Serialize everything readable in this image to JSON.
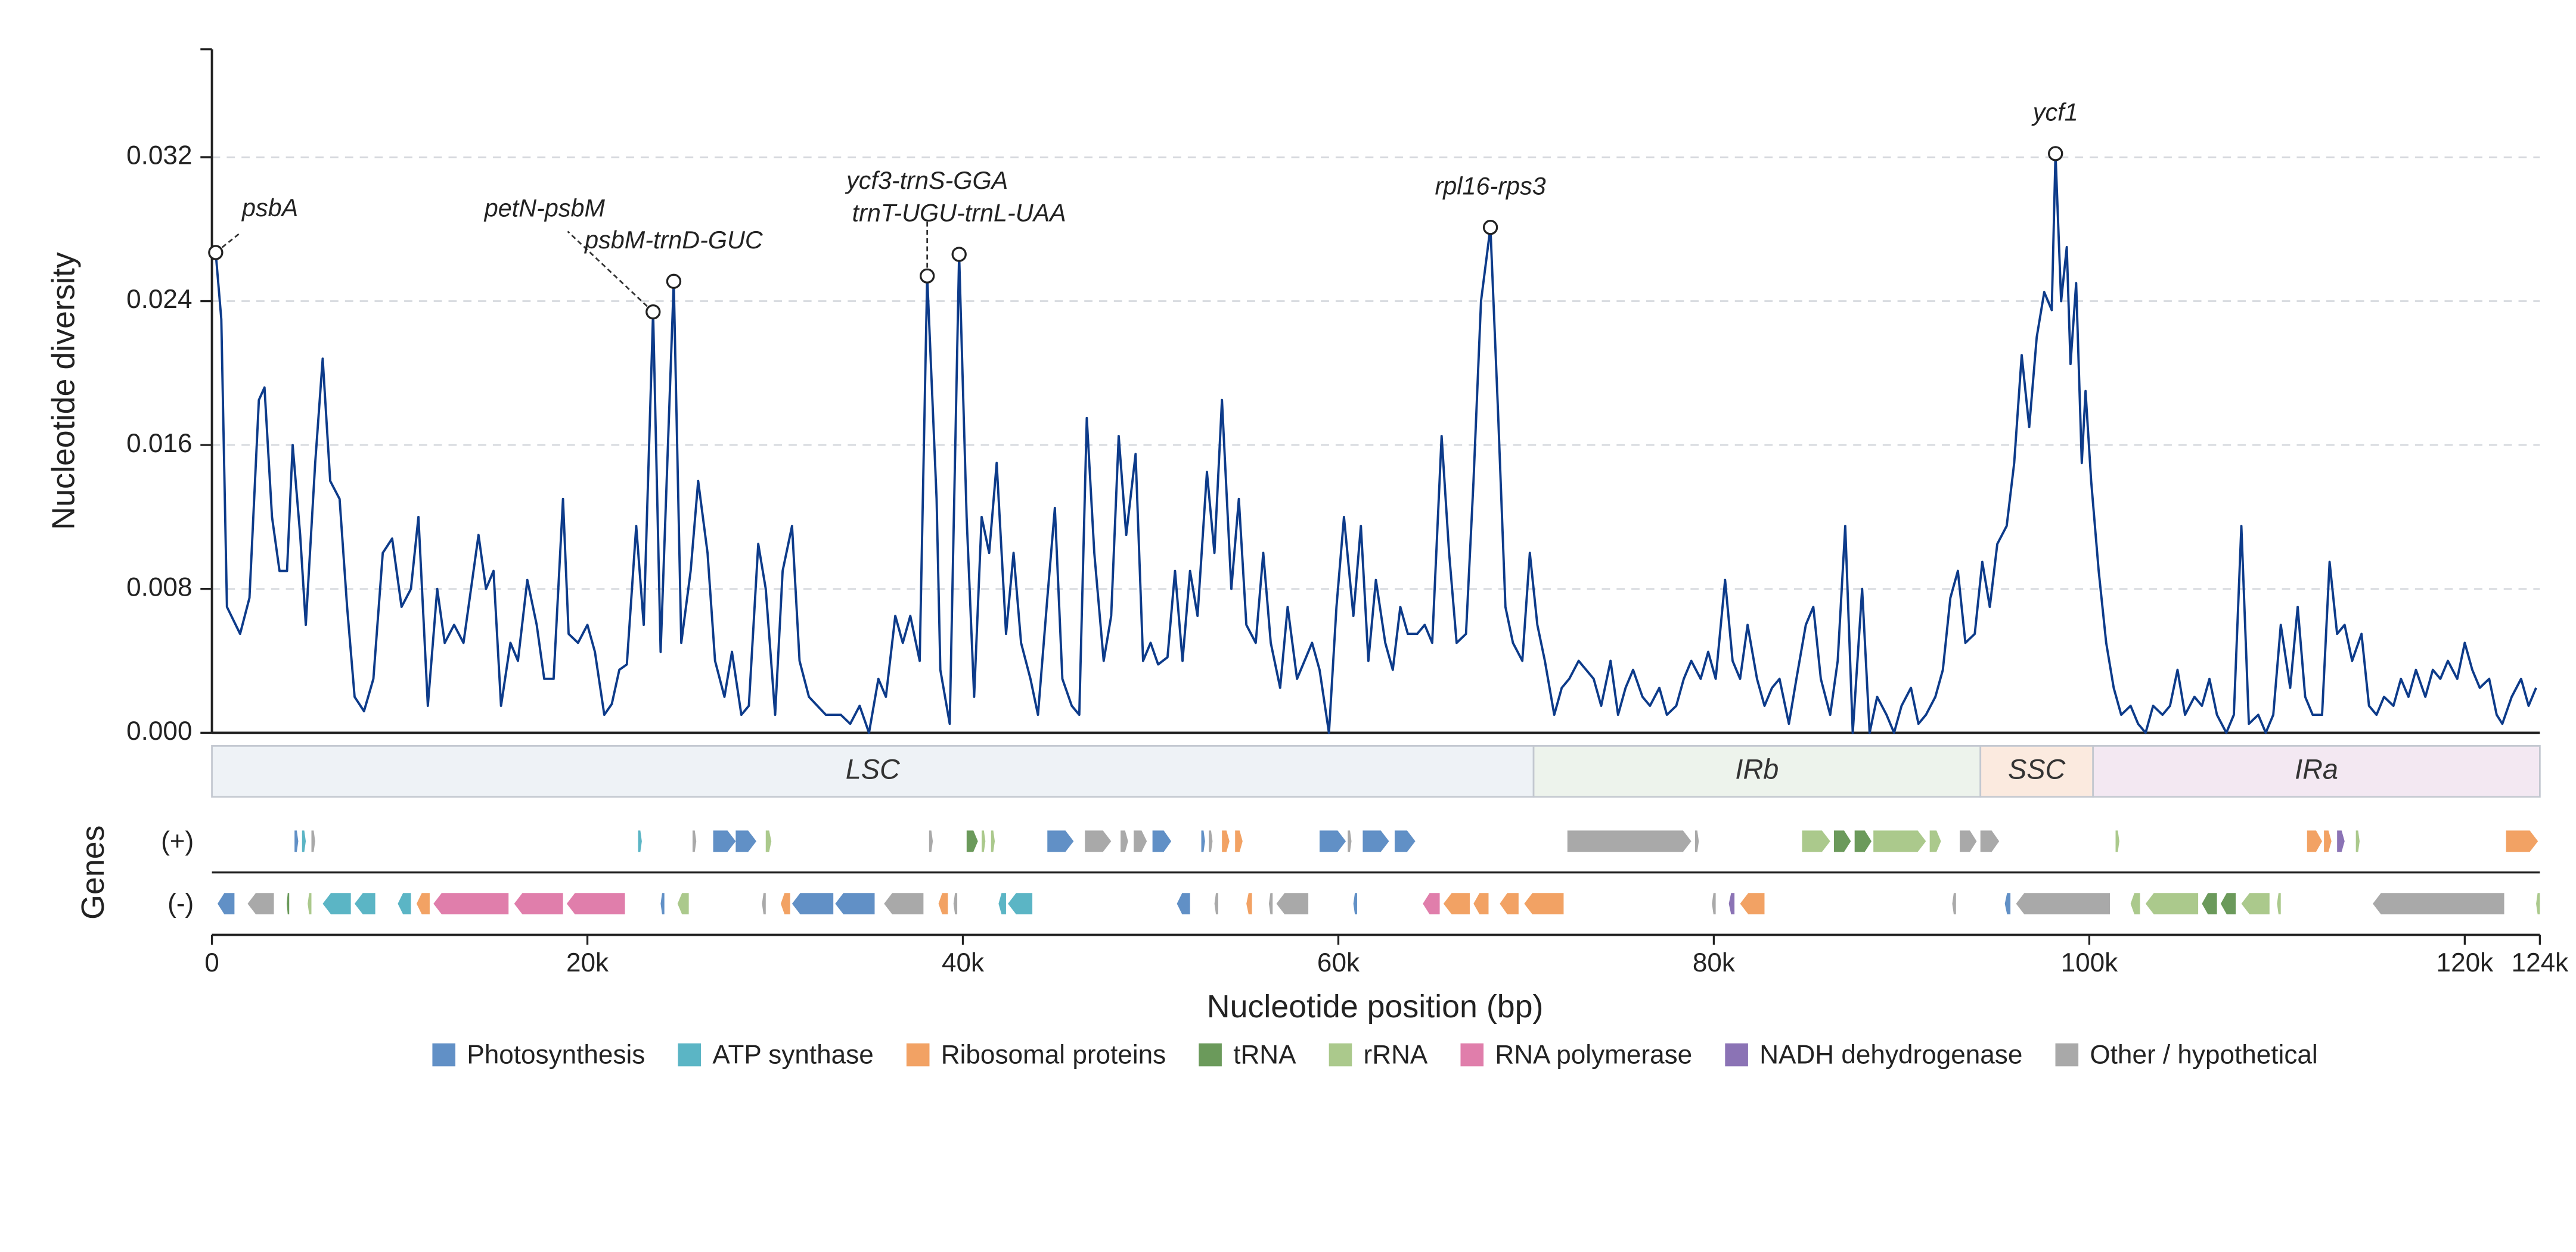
{
  "chart_data": {
    "type": "line",
    "ylabel": "Nucleotide diversity",
    "xlabel": "Nucleotide position (bp)",
    "track_title": "Genes",
    "plus_label": "(+)",
    "minus_label": "(-)",
    "color": "#0d3b8a",
    "grid": true,
    "xlim": [
      0,
      124000
    ],
    "ylim": [
      0,
      0.038
    ],
    "yticks": [
      {
        "value": 0,
        "label": "0.000"
      },
      0.008,
      0.016,
      0.024,
      0.032
    ],
    "xticks": [
      0,
      {
        "value": 20000,
        "label": "20k"
      },
      {
        "value": 40000,
        "label": "40k"
      },
      {
        "value": 60000,
        "label": "60k"
      },
      {
        "value": 80000,
        "label": "80k"
      },
      {
        "value": 100000,
        "label": "100k"
      },
      {
        "value": 120000,
        "label": "120k"
      },
      {
        "value": 124000,
        "label": "124k"
      }
    ],
    "x": [
      200,
      500,
      800,
      1500,
      2000,
      2500,
      2800,
      3200,
      3600,
      4000,
      4300,
      4700,
      5000,
      5500,
      5900,
      6300,
      6800,
      7200,
      7600,
      8100,
      8600,
      9100,
      9600,
      10100,
      10600,
      11000,
      11500,
      12000,
      12400,
      12900,
      13400,
      13800,
      14200,
      14600,
      15000,
      15400,
      15900,
      16300,
      16800,
      17300,
      17700,
      18200,
      18700,
      19000,
      19500,
      20000,
      20400,
      20900,
      21300,
      21700,
      22100,
      22600,
      23000,
      23500,
      23900,
      24600,
      25000,
      25500,
      25900,
      26400,
      26800,
      27300,
      27700,
      28200,
      28600,
      29100,
      29500,
      30000,
      30400,
      30900,
      31300,
      31800,
      32700,
      33500,
      34000,
      34500,
      35000,
      35500,
      35900,
      36400,
      36800,
      37200,
      37700,
      38100,
      38600,
      38800,
      39300,
      39800,
      40200,
      40600,
      41000,
      41400,
      41800,
      42300,
      42700,
      43100,
      43600,
      44000,
      44500,
      44900,
      45300,
      45800,
      46200,
      46600,
      47000,
      47500,
      47900,
      48300,
      48700,
      49200,
      49600,
      50000,
      50400,
      50900,
      51300,
      51700,
      52100,
      52500,
      53000,
      53400,
      53800,
      54300,
      54700,
      55100,
      55600,
      56000,
      56400,
      56900,
      57300,
      57800,
      58200,
      58600,
      59000,
      59500,
      59900,
      60300,
      60800,
      61200,
      61600,
      62000,
      62500,
      62900,
      63300,
      63700,
      64200,
      64600,
      65000,
      65500,
      65900,
      66300,
      66800,
      67200,
      67600,
      68100,
      68500,
      68900,
      69300,
      69800,
      70200,
      70600,
      71000,
      71500,
      71900,
      72300,
      72800,
      73200,
      73600,
      74000,
      74500,
      74900,
      75300,
      75700,
      76200,
      76600,
      77100,
      77500,
      78000,
      78400,
      78800,
      79300,
      79700,
      80100,
      80600,
      81000,
      81400,
      81800,
      82300,
      82700,
      83100,
      83500,
      84000,
      84400,
      84900,
      85300,
      85700,
      86200,
      86600,
      87000,
      87400,
      87900,
      88300,
      88700,
      89200,
      89600,
      90000,
      90500,
      90900,
      91300,
      91800,
      92200,
      92600,
      93000,
      93400,
      93900,
      94300,
      94700,
      95100,
      95600,
      96000,
      96400,
      96800,
      97200,
      97600,
      98000,
      98200,
      98500,
      98800,
      99000,
      99300,
      99600,
      99800,
      100100,
      100500,
      100900,
      101300,
      101700,
      102200,
      102600,
      103000,
      103400,
      103900,
      104300,
      104700,
      105100,
      105600,
      106000,
      106400,
      106800,
      107300,
      107700,
      108100,
      108500,
      109000,
      109400,
      109800,
      110200,
      110700,
      111100,
      111500,
      111900,
      112400,
      112800,
      113200,
      113600,
      114000,
      114500,
      114900,
      115300,
      115700,
      116200,
      116600,
      117000,
      117400,
      117900,
      118300,
      118700,
      119100,
      119600,
      120000,
      120400,
      120800,
      121300,
      121700,
      122000,
      122500,
      123000,
      123400,
      123800
    ],
    "values": [
      0.0267,
      0.023,
      0.007,
      0.0055,
      0.0075,
      0.0185,
      0.0192,
      0.012,
      0.009,
      0.009,
      0.016,
      0.011,
      0.006,
      0.015,
      0.0208,
      0.014,
      0.013,
      0.007,
      0.002,
      0.0012,
      0.003,
      0.01,
      0.0108,
      0.007,
      0.008,
      0.012,
      0.0015,
      0.008,
      0.005,
      0.006,
      0.005,
      0.008,
      0.011,
      0.008,
      0.009,
      0.0015,
      0.005,
      0.004,
      0.0085,
      0.006,
      0.003,
      0.003,
      0.013,
      0.0055,
      0.005,
      0.006,
      0.0045,
      0.001,
      0.0016,
      0.0035,
      0.0038,
      0.0115,
      0.006,
      0.0234,
      0.0045,
      0.0251,
      0.005,
      0.009,
      0.014,
      0.01,
      0.004,
      0.002,
      0.0045,
      0.001,
      0.0015,
      0.0105,
      0.008,
      0.001,
      0.009,
      0.0115,
      0.004,
      0.002,
      0.001,
      0.001,
      0.0005,
      0.0015,
      0,
      0.003,
      0.002,
      0.0065,
      0.005,
      0.0065,
      0.004,
      0.0254,
      0.013,
      0.0035,
      0.0005,
      0.0266,
      0.012,
      0.002,
      0.012,
      0.01,
      0.015,
      0.0055,
      0.01,
      0.005,
      0.003,
      0.001,
      0.0075,
      0.0125,
      0.003,
      0.0015,
      0.001,
      0.0175,
      0.01,
      0.004,
      0.0065,
      0.0165,
      0.011,
      0.0155,
      0.004,
      0.005,
      0.0038,
      0.0042,
      0.009,
      0.004,
      0.009,
      0.0065,
      0.0145,
      0.01,
      0.0185,
      0.008,
      0.013,
      0.006,
      0.005,
      0.01,
      0.005,
      0.0025,
      0.007,
      0.003,
      0.004,
      0.005,
      0.0035,
      0,
      0.007,
      0.012,
      0.0065,
      0.0115,
      0.004,
      0.0085,
      0.005,
      0.0035,
      0.007,
      0.0055,
      0.0055,
      0.006,
      0.005,
      0.0165,
      0.01,
      0.005,
      0.0055,
      0.014,
      0.024,
      0.0281,
      0.018,
      0.007,
      0.005,
      0.004,
      0.01,
      0.006,
      0.004,
      0.001,
      0.0025,
      0.003,
      0.004,
      0.0035,
      0.003,
      0.0015,
      0.004,
      0.001,
      0.0025,
      0.0035,
      0.002,
      0.0015,
      0.0025,
      0.001,
      0.0015,
      0.003,
      0.004,
      0.003,
      0.0045,
      0.003,
      0.0085,
      0.004,
      0.003,
      0.006,
      0.003,
      0.0015,
      0.0025,
      0.003,
      0.0005,
      0.003,
      0.006,
      0.007,
      0.003,
      0.001,
      0.004,
      0.0115,
      0,
      0.008,
      0,
      0.002,
      0.001,
      0,
      0.0015,
      0.0025,
      0.0005,
      0.001,
      0.002,
      0.0035,
      0.0075,
      0.009,
      0.005,
      0.0055,
      0.0095,
      0.007,
      0.0105,
      0.0115,
      0.015,
      0.021,
      0.017,
      0.022,
      0.0245,
      0.0235,
      0.0322,
      0.024,
      0.027,
      0.0205,
      0.025,
      0.015,
      0.019,
      0.014,
      0.009,
      0.005,
      0.0025,
      0.001,
      0.0015,
      0.0005,
      0,
      0.0015,
      0.001,
      0.0015,
      0.0035,
      0.001,
      0.002,
      0.0015,
      0.003,
      0.001,
      0,
      0.001,
      0.0115,
      0.0005,
      0.001,
      0,
      0.001,
      0.006,
      0.0025,
      0.007,
      0.002,
      0.001,
      0.001,
      0.0095,
      0.0055,
      0.006,
      0.004,
      0.0055,
      0.0015,
      0.001,
      0.002,
      0.0015,
      0.003,
      0.002,
      0.0035,
      0.002,
      0.0035,
      0.003,
      0.004,
      0.003,
      0.005,
      0.0035,
      0.0025,
      0.003,
      0.001,
      0.0005,
      0.002,
      0.003,
      0.0015,
      0.0025
    ],
    "annotations": [
      {
        "label": "psbA",
        "x": 200,
        "y": 0.0267
      },
      {
        "label": "petN-psbM",
        "x": 23500,
        "y": 0.0234
      },
      {
        "label": "psbM-trnD-GUC",
        "x": 24600,
        "y": 0.0251
      },
      {
        "label": "ycf3-trnS-GGA",
        "x": 38100,
        "y": 0.0254
      },
      {
        "label": "trnT-UGU-trnL-UAA",
        "x": 39800,
        "y": 0.0266
      },
      {
        "label": "rpl16-rps3",
        "x": 68100,
        "y": 0.0281
      },
      {
        "label": "ycf1",
        "x": 98200,
        "y": 0.0322
      }
    ],
    "regions": [
      {
        "name": "LSC",
        "start": 0,
        "end": 70400,
        "color": "#eef2f6"
      },
      {
        "name": "IRb",
        "start": 70400,
        "end": 94200,
        "color": "#edf3ec"
      },
      {
        "name": "SSC",
        "start": 94200,
        "end": 100200,
        "color": "#fbeadf"
      },
      {
        "name": "IRa",
        "start": 100200,
        "end": 124000,
        "color": "#f3e8f2"
      }
    ],
    "gene_groups": [
      {
        "name": "Photosynthesis",
        "color": "#6190c6",
        "plus": [
          [
            4400,
            4600
          ],
          [
            26700,
            27900
          ],
          [
            27900,
            29000
          ],
          [
            44500,
            45900
          ],
          [
            50100,
            51100
          ],
          [
            52700,
            52900
          ],
          [
            59000,
            60400
          ],
          [
            61300,
            62700
          ],
          [
            63000,
            64100
          ]
        ],
        "minus": [
          [
            300,
            1200
          ],
          [
            23900,
            24100
          ],
          [
            30900,
            33100
          ],
          [
            33200,
            35300
          ],
          [
            51400,
            52100
          ],
          [
            60800,
            61000
          ],
          [
            95500,
            95800
          ]
        ]
      },
      {
        "name": "ATP synthase",
        "color": "#5bb5c5",
        "plus": [
          [
            4800,
            5000
          ],
          [
            22700,
            22900
          ]
        ],
        "minus": [
          [
            5900,
            7400
          ],
          [
            7600,
            8700
          ],
          [
            9900,
            10600
          ],
          [
            41900,
            42300
          ],
          [
            42400,
            43700
          ]
        ]
      },
      {
        "name": "Ribosomal proteins",
        "color": "#f2a264",
        "plus": [
          [
            53800,
            54200
          ],
          [
            54500,
            54900
          ],
          [
            111600,
            112400
          ],
          [
            112500,
            112900
          ],
          [
            122200,
            123900
          ]
        ],
        "minus": [
          [
            10900,
            11600
          ],
          [
            30300,
            30800
          ],
          [
            38700,
            39200
          ],
          [
            55100,
            55400
          ],
          [
            65600,
            67000
          ],
          [
            67200,
            68000
          ],
          [
            68600,
            69600
          ],
          [
            69900,
            72000
          ],
          [
            81400,
            82700
          ]
        ]
      },
      {
        "name": "tRNA",
        "color": "#6b9a5b",
        "plus": [
          [
            40200,
            40800
          ],
          [
            86400,
            87300
          ],
          [
            87500,
            88400
          ]
        ],
        "minus": [
          [
            4000,
            4100
          ],
          [
            106000,
            106800
          ],
          [
            107000,
            107800
          ]
        ]
      },
      {
        "name": "rRNA",
        "color": "#abc98c",
        "plus": [
          [
            29500,
            29800
          ],
          [
            41000,
            41200
          ],
          [
            41500,
            41700
          ],
          [
            84700,
            86200
          ],
          [
            88500,
            91300
          ],
          [
            91500,
            92100
          ],
          [
            101400,
            101600
          ],
          [
            114200,
            114400
          ]
        ],
        "minus": [
          [
            5100,
            5300
          ],
          [
            24800,
            25400
          ],
          [
            102200,
            102700
          ],
          [
            103000,
            105800
          ],
          [
            108100,
            109600
          ],
          [
            110000,
            110200
          ],
          [
            123800,
            124000
          ]
        ]
      },
      {
        "name": "RNA polymerase",
        "color": "#e07eab",
        "plus": [],
        "minus": [
          [
            11800,
            15800
          ],
          [
            16100,
            18700
          ],
          [
            18900,
            22000
          ],
          [
            64500,
            65400
          ]
        ]
      },
      {
        "name": "NADH dehydrogenase",
        "color": "#8b73b5",
        "plus": [
          [
            113200,
            113600
          ]
        ],
        "minus": [
          [
            80800,
            81100
          ]
        ]
      },
      {
        "name": "Other / hypothetical",
        "color": "#a9a9a9",
        "plus": [
          [
            5300,
            5500
          ],
          [
            25600,
            25800
          ],
          [
            38200,
            38400
          ],
          [
            46500,
            47900
          ],
          [
            48400,
            48800
          ],
          [
            49100,
            49800
          ],
          [
            53100,
            53300
          ],
          [
            60500,
            60700
          ],
          [
            72200,
            78800
          ],
          [
            79000,
            79200
          ],
          [
            93100,
            94000
          ],
          [
            94200,
            95200
          ]
        ],
        "minus": [
          [
            1900,
            3300
          ],
          [
            29300,
            29500
          ],
          [
            35800,
            37900
          ],
          [
            39500,
            39700
          ],
          [
            53400,
            53600
          ],
          [
            56300,
            56500
          ],
          [
            56700,
            58400
          ],
          [
            79900,
            80100
          ],
          [
            92700,
            92900
          ],
          [
            96100,
            101100
          ],
          [
            115100,
            122100
          ]
        ]
      }
    ]
  }
}
